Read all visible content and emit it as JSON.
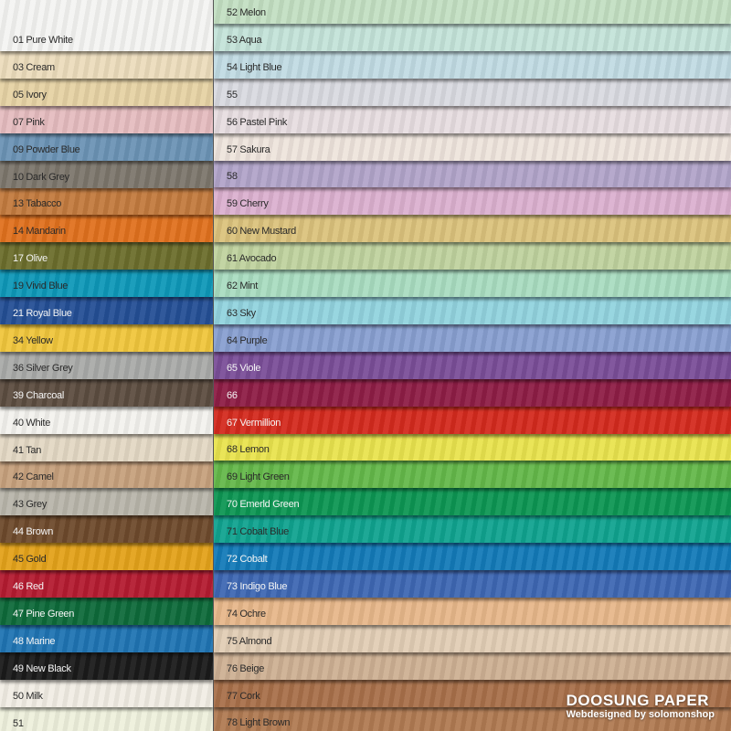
{
  "left_column": [
    {
      "label": "01 Pure White",
      "color": "#f4f4f2"
    },
    {
      "label": "03 Cream",
      "color": "#ecdcbc"
    },
    {
      "label": "05 Ivory",
      "color": "#e6d2a4"
    },
    {
      "label": "07 Pink",
      "color": "#e5bcbf"
    },
    {
      "label": "09 Powder Blue",
      "color": "#6b93b5"
    },
    {
      "label": "10 Dark Grey",
      "color": "#7c766c"
    },
    {
      "label": "13 Tabacco",
      "color": "#c27a3e"
    },
    {
      "label": "14 Mandarin",
      "color": "#e0711e"
    },
    {
      "label": "17 Olive",
      "color": "#6b6d2c"
    },
    {
      "label": "19 Vivid Blue",
      "color": "#0e98b8"
    },
    {
      "label": "21 Royal Blue",
      "color": "#244f95"
    },
    {
      "label": "34 Yellow",
      "color": "#f0c63c"
    },
    {
      "label": "36 Silver Grey",
      "color": "#a9aaa8"
    },
    {
      "label": "39 Charcoal",
      "color": "#5c4d40"
    },
    {
      "label": "40 White",
      "color": "#f3f2ee"
    },
    {
      "label": "41 Tan",
      "color": "#e3d8c4"
    },
    {
      "label": "42 Camel",
      "color": "#c6a07c"
    },
    {
      "label": "43 Grey",
      "color": "#b8b5aa"
    },
    {
      "label": "44 Brown",
      "color": "#6e4a2c"
    },
    {
      "label": "45 Gold",
      "color": "#e3a21a"
    },
    {
      "label": "46 Red",
      "color": "#b41b30"
    },
    {
      "label": "47 Pine Green",
      "color": "#0e6a3a"
    },
    {
      "label": "48 Marine",
      "color": "#1f74b3"
    },
    {
      "label": "49 New Black",
      "color": "#1a1a1a"
    },
    {
      "label": "50 Milk",
      "color": "#f1ede4"
    },
    {
      "label": "51",
      "color": "#eef0dc"
    }
  ],
  "right_column": [
    {
      "label": "52 Melon",
      "color": "#c3dfc2"
    },
    {
      "label": "53 Aqua",
      "color": "#c4e3d9"
    },
    {
      "label": "54 Light Blue",
      "color": "#c1dbe3"
    },
    {
      "label": "55",
      "color": "#d9dae0"
    },
    {
      "label": "56 Pastel Pink",
      "color": "#e7dde0"
    },
    {
      "label": "57 Sakura",
      "color": "#eee4dc"
    },
    {
      "label": "58",
      "color": "#b1a4c9"
    },
    {
      "label": "59 Cherry",
      "color": "#dbb0cf"
    },
    {
      "label": "60 New Mustard",
      "color": "#dbc27c"
    },
    {
      "label": "61 Avocado",
      "color": "#bfd29e"
    },
    {
      "label": "62 Mint",
      "color": "#a9dcc0"
    },
    {
      "label": "63 Sky",
      "color": "#92d3de"
    },
    {
      "label": "64 Purple",
      "color": "#889fd0"
    },
    {
      "label": "65 Viole",
      "color": "#7a4e98"
    },
    {
      "label": "66",
      "color": "#8e1d45"
    },
    {
      "label": "67 Vermillion",
      "color": "#d42a1e"
    },
    {
      "label": "68 Lemon",
      "color": "#e9e34e"
    },
    {
      "label": "69 Light Green",
      "color": "#64b84a"
    },
    {
      "label": "70 Emerld Green",
      "color": "#0d9653"
    },
    {
      "label": "71 Cobalt Blue",
      "color": "#10a38f"
    },
    {
      "label": "72 Cobalt",
      "color": "#137ab8"
    },
    {
      "label": "73 Indigo Blue",
      "color": "#3e67b3"
    },
    {
      "label": "74 Ochre",
      "color": "#e7b78a"
    },
    {
      "label": "75 Almond",
      "color": "#e1cdb5"
    },
    {
      "label": "76 Beige",
      "color": "#cdb093"
    },
    {
      "label": "77 Cork",
      "color": "#a8704a"
    },
    {
      "label": "78 Light Brown",
      "color": "#b07a52"
    }
  ],
  "brand": {
    "title": "DOOSUNG PAPER",
    "subtitle": "Webdesigned by solomonshop"
  }
}
